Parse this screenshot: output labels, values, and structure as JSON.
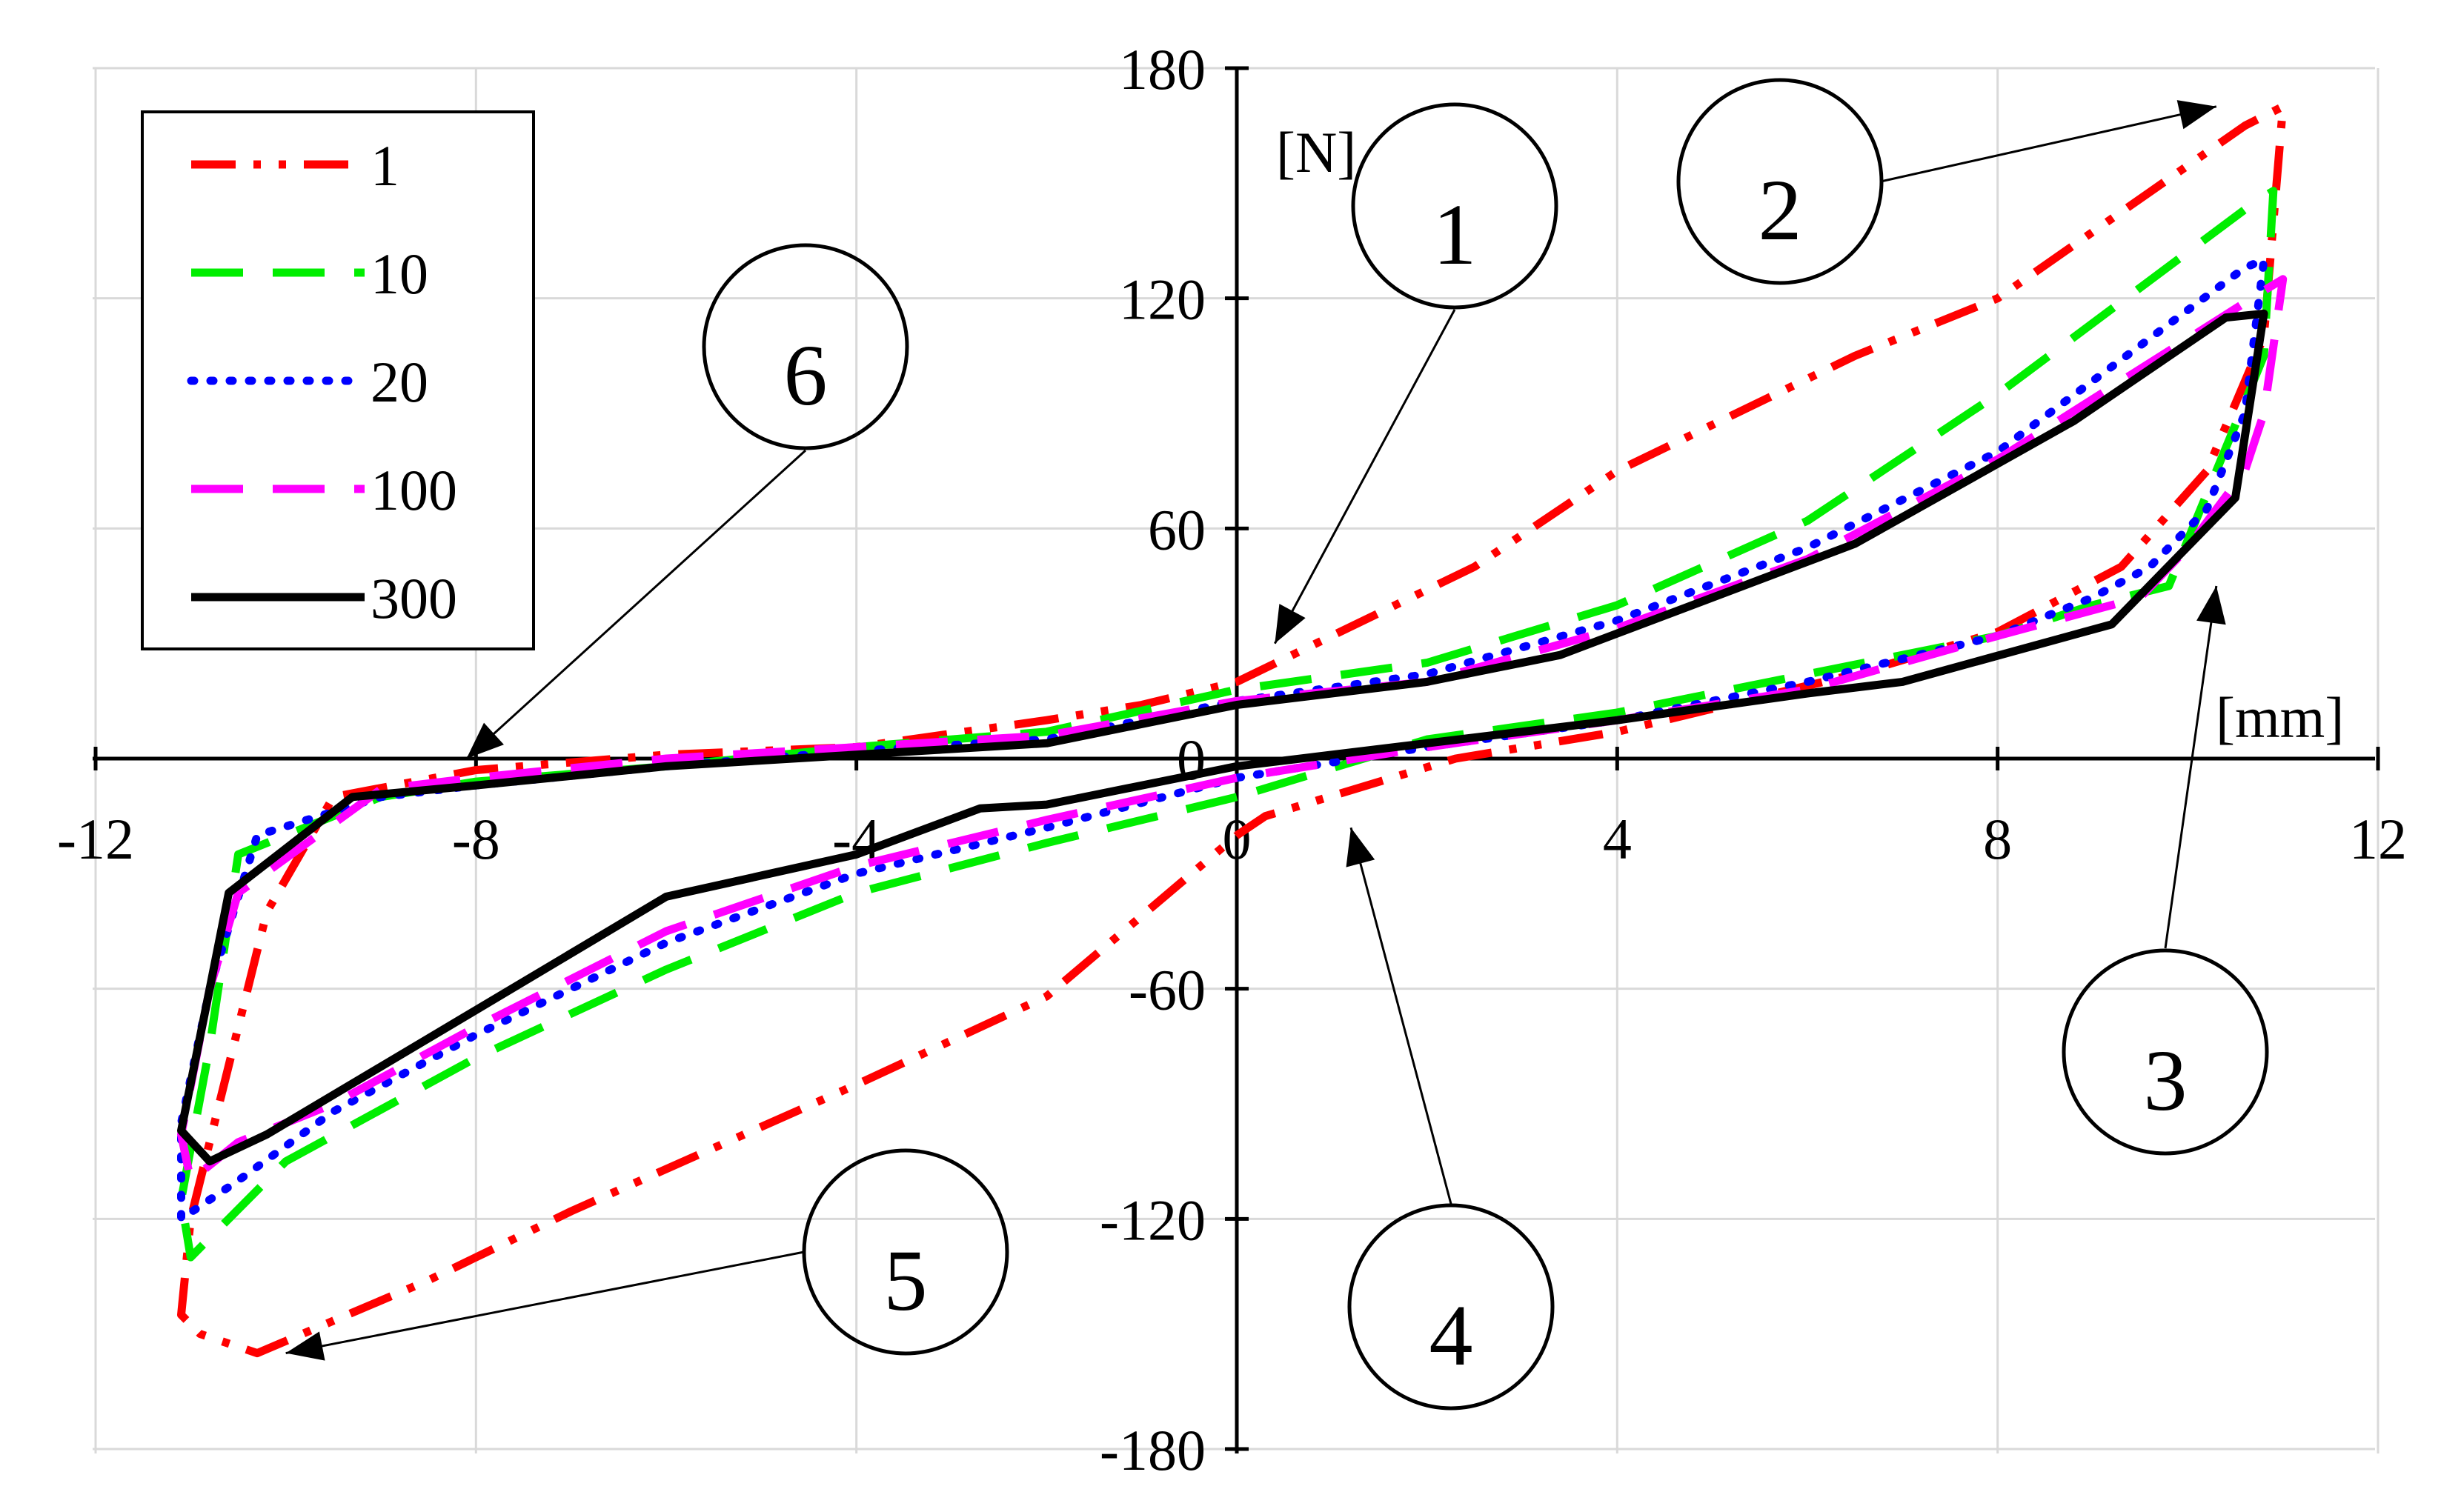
{
  "chart_data": {
    "type": "line",
    "xlabel": "[mm]",
    "ylabel": "[N]",
    "xlim": [
      -12,
      12
    ],
    "ylim": [
      -180,
      180
    ],
    "x_ticks": [
      -12,
      -8,
      -4,
      0,
      4,
      8,
      12
    ],
    "y_ticks": [
      180,
      120,
      60,
      0,
      -60,
      -120,
      -180
    ],
    "x_tick_labels": [
      "-12",
      "-8",
      "-4",
      "0",
      "4",
      "8",
      "12"
    ],
    "y_tick_labels": [
      "180",
      "120",
      "60",
      "0",
      "-60",
      "-120",
      "-180"
    ],
    "grid": true,
    "legend_position": "top-left",
    "series": [
      {
        "name": "1",
        "color": "#ff0000",
        "dash": "dash-dot-dot",
        "points": [
          [
            0,
            -20
          ],
          [
            0.3,
            -15
          ],
          [
            2.3,
            0
          ],
          [
            4,
            7
          ],
          [
            6.5,
            22
          ],
          [
            8,
            33
          ],
          [
            9.3,
            50
          ],
          [
            10.2,
            75
          ],
          [
            10.8,
            110
          ],
          [
            11,
            170
          ],
          [
            10.6,
            165
          ],
          [
            8,
            120
          ],
          [
            6.5,
            105
          ],
          [
            4,
            75
          ],
          [
            2.5,
            50
          ],
          [
            0,
            20
          ],
          [
            -1,
            14
          ],
          [
            -2,
            10
          ],
          [
            -4,
            3
          ],
          [
            -6,
            1
          ],
          [
            -8,
            -3
          ],
          [
            -9.5,
            -10
          ],
          [
            -10.2,
            -40
          ],
          [
            -10.6,
            -80
          ],
          [
            -11,
            -120
          ],
          [
            -11.1,
            -145
          ],
          [
            -10.9,
            -150
          ],
          [
            -10.3,
            -155
          ],
          [
            -8.5,
            -136
          ],
          [
            -7,
            -118
          ],
          [
            -4,
            -85
          ],
          [
            -2,
            -62
          ],
          [
            0,
            -20
          ]
        ]
      },
      {
        "name": "10",
        "color": "#00ee00",
        "dash": "long-dash",
        "points": [
          [
            0,
            -10
          ],
          [
            -2,
            -22
          ],
          [
            -4,
            -35
          ],
          [
            -6,
            -55
          ],
          [
            -8,
            -78
          ],
          [
            -10,
            -105
          ],
          [
            -11,
            -130
          ],
          [
            -11.1,
            -115
          ],
          [
            -10.8,
            -75
          ],
          [
            -10.5,
            -25
          ],
          [
            -9,
            -10
          ],
          [
            -8,
            -6
          ],
          [
            -6,
            -2
          ],
          [
            -4,
            3
          ],
          [
            -2,
            7
          ],
          [
            0,
            18
          ],
          [
            2,
            25
          ],
          [
            4,
            40
          ],
          [
            6,
            62
          ],
          [
            8,
            95
          ],
          [
            10.7,
            145
          ],
          [
            10.9,
            148
          ],
          [
            10.8,
            105
          ],
          [
            10.3,
            75
          ],
          [
            9.8,
            45
          ],
          [
            9,
            40
          ],
          [
            8,
            32
          ],
          [
            6,
            22
          ],
          [
            4,
            12
          ],
          [
            2,
            5
          ],
          [
            0,
            -10
          ]
        ]
      },
      {
        "name": "20",
        "color": "#0000ff",
        "dash": "dotted",
        "points": [
          [
            0,
            -5
          ],
          [
            -2,
            -18
          ],
          [
            -4,
            -30
          ],
          [
            -6,
            -48
          ],
          [
            -8,
            -72
          ],
          [
            -9.5,
            -92
          ],
          [
            -10.5,
            -110
          ],
          [
            -11.1,
            -120
          ],
          [
            -11.1,
            -95
          ],
          [
            -10.8,
            -60
          ],
          [
            -10.3,
            -20
          ],
          [
            -9,
            -10
          ],
          [
            -8,
            -7
          ],
          [
            -6,
            -2
          ],
          [
            -4,
            2
          ],
          [
            -2,
            5
          ],
          [
            0,
            15
          ],
          [
            2,
            22
          ],
          [
            4,
            36
          ],
          [
            6,
            55
          ],
          [
            8,
            80
          ],
          [
            10.6,
            128
          ],
          [
            10.8,
            130
          ],
          [
            10.6,
            90
          ],
          [
            10.2,
            65
          ],
          [
            9.6,
            50
          ],
          [
            9,
            42
          ],
          [
            8,
            32
          ],
          [
            6,
            20
          ],
          [
            4,
            10
          ],
          [
            2,
            3
          ],
          [
            0,
            -5
          ]
        ]
      },
      {
        "name": "100",
        "color": "#ff00ff",
        "dash": "long-dash",
        "points": [
          [
            0,
            -5
          ],
          [
            -2,
            -16
          ],
          [
            -4,
            -28
          ],
          [
            -6,
            -45
          ],
          [
            -8,
            -70
          ],
          [
            -9.5,
            -90
          ],
          [
            -10.5,
            -100
          ],
          [
            -11,
            -110
          ],
          [
            -11.1,
            -98
          ],
          [
            -10.8,
            -60
          ],
          [
            -10.5,
            -35
          ],
          [
            -9,
            -8
          ],
          [
            -8,
            -5
          ],
          [
            -6,
            0
          ],
          [
            -4,
            3
          ],
          [
            -2,
            6
          ],
          [
            0,
            15
          ],
          [
            2,
            20
          ],
          [
            4,
            34
          ],
          [
            6,
            52
          ],
          [
            8,
            78
          ],
          [
            10.8,
            122
          ],
          [
            11,
            125
          ],
          [
            10.8,
            90
          ],
          [
            10.6,
            75
          ],
          [
            10,
            55
          ],
          [
            9.5,
            42
          ],
          [
            8,
            32
          ],
          [
            6,
            18
          ],
          [
            4,
            10
          ],
          [
            2,
            3
          ],
          [
            0,
            -5
          ]
        ]
      },
      {
        "name": "300",
        "color": "#000000",
        "dash": "solid",
        "points": [
          [
            0,
            -2
          ],
          [
            -2,
            -12
          ],
          [
            -2.7,
            -13
          ],
          [
            -4,
            -25
          ],
          [
            -6,
            -36
          ],
          [
            -8.3,
            -70
          ],
          [
            -10.2,
            -98
          ],
          [
            -10.8,
            -105
          ],
          [
            -11.1,
            -97
          ],
          [
            -10.8,
            -60
          ],
          [
            -10.6,
            -35
          ],
          [
            -9.3,
            -10
          ],
          [
            -8,
            -7
          ],
          [
            -6,
            -2
          ],
          [
            -4,
            1
          ],
          [
            -2,
            4
          ],
          [
            0,
            14
          ],
          [
            2,
            20
          ],
          [
            3.4,
            27
          ],
          [
            6.5,
            56
          ],
          [
            8.8,
            88
          ],
          [
            10.4,
            115
          ],
          [
            10.8,
            116
          ],
          [
            10.5,
            68
          ],
          [
            9.2,
            35
          ],
          [
            7,
            20
          ],
          [
            6,
            17
          ],
          [
            4,
            10
          ],
          [
            2,
            4
          ],
          [
            0,
            -2
          ]
        ]
      }
    ],
    "annotations": [
      {
        "label": "1",
        "points_to": [
          0.4,
          30
        ]
      },
      {
        "label": "2",
        "points_to": [
          10.3,
          170
        ]
      },
      {
        "label": "3",
        "points_to": [
          10.3,
          45
        ]
      },
      {
        "label": "4",
        "points_to": [
          1.2,
          -18
        ]
      },
      {
        "label": "5",
        "points_to": [
          -10,
          -155
        ]
      },
      {
        "label": "6",
        "points_to": [
          -8.1,
          0
        ]
      }
    ]
  }
}
